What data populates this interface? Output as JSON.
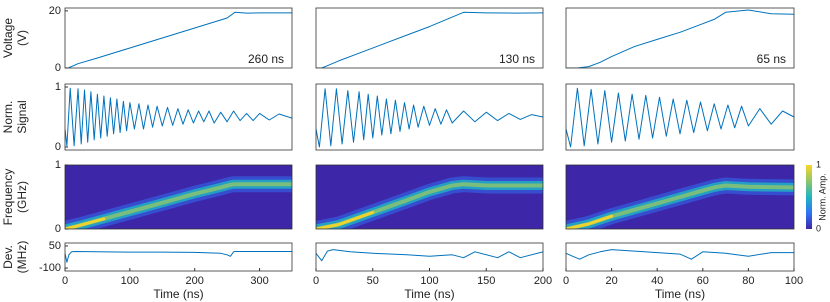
{
  "chart_data": [
    {
      "type": "line",
      "color": "#0072bd",
      "x": [
        0,
        5,
        20,
        50,
        100,
        150,
        200,
        250,
        262,
        280,
        300,
        350
      ],
      "values": [
        0,
        0,
        1.5,
        3.5,
        7,
        10.5,
        14,
        17.5,
        19.5,
        19.2,
        19.3,
        19.3
      ],
      "xlim": [
        0,
        350
      ],
      "ylim": [
        0,
        21
      ],
      "yticks": [
        0,
        20
      ],
      "ylabel": [
        "Voltage",
        "(V)"
      ],
      "annotation": "260 ns"
    },
    {
      "type": "line",
      "color": "#0072bd",
      "x": [
        0,
        5,
        10,
        20,
        40,
        60,
        80,
        100,
        120,
        130,
        150,
        175,
        200
      ],
      "values": [
        0,
        0,
        0.8,
        2.5,
        5.5,
        8.5,
        11.5,
        14.5,
        17.8,
        19.5,
        19.3,
        19.2,
        19.3
      ],
      "xlim": [
        0,
        200
      ],
      "ylim": [
        0,
        21
      ],
      "annotation": "130 ns"
    },
    {
      "type": "line",
      "color": "#0072bd",
      "x": [
        0,
        5,
        10,
        15,
        20,
        30,
        40,
        50,
        60,
        65,
        70,
        80,
        90,
        100
      ],
      "values": [
        0,
        0,
        0.5,
        2,
        4,
        7.5,
        10,
        12.5,
        15.5,
        17,
        19.5,
        20.3,
        19,
        18.8
      ],
      "xlim": [
        0,
        100
      ],
      "ylim": [
        0,
        21
      ],
      "annotation": "65 ns"
    },
    {
      "type": "line",
      "color": "#0072bd",
      "x": [
        0,
        3,
        8,
        14,
        20,
        25,
        30,
        35,
        40,
        45,
        50,
        55,
        60,
        65,
        70,
        75,
        80,
        85,
        90,
        95,
        100,
        107,
        114,
        121,
        128,
        135,
        142,
        150,
        158,
        166,
        174,
        182,
        190,
        198,
        206,
        214,
        222,
        230,
        240,
        250,
        260,
        270,
        280,
        290,
        300,
        315,
        330,
        350
      ],
      "values": [
        0.3,
        0.02,
        0.98,
        0.02,
        0.97,
        0.05,
        0.95,
        0.08,
        0.92,
        0.12,
        0.88,
        0.15,
        0.85,
        0.18,
        0.82,
        0.22,
        0.8,
        0.24,
        0.76,
        0.27,
        0.74,
        0.3,
        0.72,
        0.3,
        0.7,
        0.33,
        0.68,
        0.35,
        0.66,
        0.36,
        0.64,
        0.38,
        0.62,
        0.4,
        0.6,
        0.42,
        0.6,
        0.4,
        0.58,
        0.42,
        0.6,
        0.44,
        0.56,
        0.44,
        0.56,
        0.45,
        0.55,
        0.48
      ],
      "xlim": [
        0,
        350
      ],
      "ylim": [
        -0.05,
        1.05
      ],
      "yticks": [
        0,
        1
      ],
      "ylabel": [
        "Norm.",
        "Signal"
      ]
    },
    {
      "type": "line",
      "color": "#0072bd",
      "x": [
        0,
        3,
        8,
        13,
        18,
        23,
        28,
        33,
        38,
        42,
        46,
        50,
        54,
        58,
        62,
        66,
        70,
        74,
        78,
        82,
        86,
        90,
        95,
        100,
        105,
        110,
        115,
        120,
        130,
        140,
        150,
        160,
        170,
        180,
        190,
        200
      ],
      "values": [
        0.3,
        0.0,
        0.97,
        0.02,
        0.97,
        0.05,
        0.94,
        0.08,
        0.92,
        0.12,
        0.88,
        0.15,
        0.85,
        0.2,
        0.8,
        0.22,
        0.78,
        0.26,
        0.74,
        0.3,
        0.7,
        0.33,
        0.68,
        0.36,
        0.64,
        0.38,
        0.62,
        0.4,
        0.6,
        0.42,
        0.58,
        0.44,
        0.56,
        0.46,
        0.54,
        0.5
      ],
      "xlim": [
        0,
        200
      ],
      "ylim": [
        -0.05,
        1.05
      ]
    },
    {
      "type": "line",
      "color": "#0072bd",
      "x": [
        0,
        2,
        5,
        8,
        11,
        14,
        17,
        20,
        23,
        26,
        29,
        32,
        35,
        38,
        41,
        44,
        47,
        50,
        53,
        56,
        59,
        62,
        65,
        68,
        71,
        74,
        77,
        80,
        85,
        90,
        95,
        100
      ],
      "values": [
        0.3,
        0.0,
        0.98,
        0.02,
        0.96,
        0.05,
        0.94,
        0.08,
        0.9,
        0.1,
        0.88,
        0.13,
        0.86,
        0.15,
        0.83,
        0.18,
        0.8,
        0.22,
        0.78,
        0.24,
        0.75,
        0.27,
        0.72,
        0.3,
        0.7,
        0.32,
        0.68,
        0.35,
        0.64,
        0.38,
        0.6,
        0.5
      ],
      "xlim": [
        0,
        100
      ],
      "ylim": [
        -0.05,
        1.05
      ]
    },
    {
      "type": "heatmap",
      "colormap": [
        "#3e26a8",
        "#2f74f5",
        "#1fb5c0",
        "#8ec66b",
        "#f9d528"
      ],
      "x": [
        0,
        20,
        60,
        100,
        150,
        200,
        240,
        255,
        260,
        300,
        350
      ],
      "values": [
        0,
        0.05,
        0.16,
        0.27,
        0.41,
        0.55,
        0.65,
        0.69,
        0.7,
        0.7,
        0.7
      ],
      "xlim": [
        0,
        350
      ],
      "ylim": [
        0,
        1
      ],
      "yticks": [
        0,
        1
      ],
      "ylabel": [
        "Frequency",
        "(GHz)"
      ]
    },
    {
      "type": "heatmap",
      "colormap": [
        "#3e26a8",
        "#2f74f5",
        "#1fb5c0",
        "#8ec66b",
        "#f9d528"
      ],
      "x": [
        0,
        20,
        50,
        80,
        100,
        120,
        130,
        150,
        200
      ],
      "values": [
        0,
        0.07,
        0.26,
        0.45,
        0.58,
        0.68,
        0.7,
        0.68,
        0.68
      ],
      "xlim": [
        0,
        200
      ],
      "ylim": [
        0,
        1
      ]
    },
    {
      "type": "heatmap",
      "colormap": [
        "#3e26a8",
        "#2f74f5",
        "#1fb5c0",
        "#8ec66b",
        "#f9d528"
      ],
      "x": [
        0,
        10,
        20,
        30,
        40,
        50,
        60,
        65,
        70,
        80,
        100
      ],
      "values": [
        0,
        0.08,
        0.2,
        0.3,
        0.4,
        0.5,
        0.6,
        0.65,
        0.68,
        0.66,
        0.65
      ],
      "xlim": [
        0,
        100
      ],
      "ylim": [
        0,
        1
      ],
      "colorbar": {
        "label": "Norm. Amp.",
        "ticks": [
          0,
          1
        ]
      }
    },
    {
      "type": "line",
      "color": "#0072bd",
      "x": [
        0,
        3,
        6,
        10,
        15,
        50,
        100,
        150,
        200,
        240,
        250,
        255,
        260,
        262,
        350
      ],
      "values": [
        0,
        -60,
        -10,
        10,
        12,
        10,
        8,
        8,
        6,
        0,
        -10,
        -20,
        10,
        12,
        12
      ],
      "xlim": [
        0,
        350
      ],
      "ylim": [
        -120,
        70
      ],
      "yticks": [
        -100,
        50
      ],
      "ylabel": [
        "Dev.",
        "(MHz)"
      ],
      "xticks": [
        0,
        100,
        200,
        300
      ],
      "xlabel": "Time (ns)"
    },
    {
      "type": "line",
      "color": "#0072bd",
      "x": [
        0,
        5,
        10,
        15,
        30,
        50,
        80,
        100,
        120,
        130,
        140,
        160,
        170,
        180,
        200
      ],
      "values": [
        0,
        -50,
        15,
        25,
        10,
        0,
        -10,
        -20,
        -10,
        -30,
        10,
        -30,
        10,
        -30,
        10
      ],
      "xlim": [
        0,
        200
      ],
      "ylim": [
        -120,
        70
      ],
      "xticks": [
        0,
        50,
        100,
        150,
        200
      ],
      "xlabel": "Time (ns)"
    },
    {
      "type": "line",
      "color": "#0072bd",
      "x": [
        0,
        3,
        6,
        10,
        15,
        20,
        30,
        40,
        50,
        55,
        60,
        70,
        80,
        90,
        100
      ],
      "values": [
        0,
        -20,
        -40,
        -10,
        10,
        25,
        15,
        5,
        -5,
        -40,
        10,
        0,
        -20,
        5,
        5
      ],
      "xlim": [
        0,
        100
      ],
      "ylim": [
        -120,
        70
      ],
      "xticks": [
        0,
        20,
        40,
        60,
        80,
        100
      ],
      "xlabel": "Time (ns)"
    }
  ]
}
